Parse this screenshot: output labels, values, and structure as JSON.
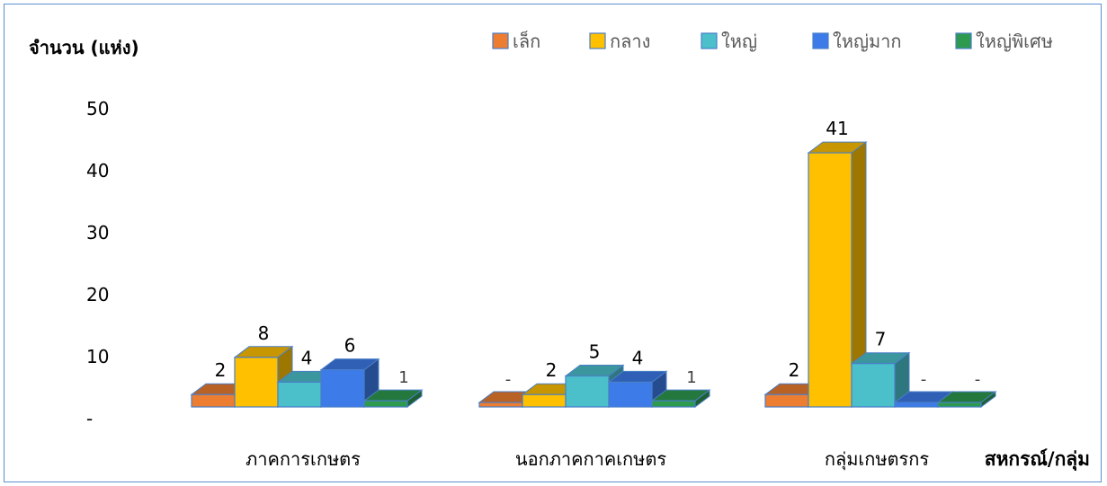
{
  "chart_data": {
    "type": "bar",
    "style": "3d-clustered-column",
    "ylabel": "จำนวน (แห่ง)",
    "xlabel": "สหกรณ์/กลุ่ม",
    "ylim": [
      0,
      50
    ],
    "yticks": [
      0,
      10,
      20,
      30,
      40,
      50
    ],
    "ytick_labels": [
      "-",
      "10",
      "20",
      "30",
      "40",
      "50"
    ],
    "categories": [
      "ภาคการเกษตร",
      "นอกภาคกาคเกษตร",
      "กลุ่มเกษตรกร"
    ],
    "legend_position": "top-right",
    "grid": false,
    "series": [
      {
        "name": "เล็ก",
        "color": "#ed7d31",
        "values": [
          2,
          0,
          2
        ],
        "labels": [
          "2",
          "-",
          "2"
        ]
      },
      {
        "name": "กลาง",
        "color": "#ffc000",
        "values": [
          8,
          2,
          41
        ],
        "labels": [
          "8",
          "2",
          "41"
        ]
      },
      {
        "name": "ใหญ่",
        "color": "#4bc0cb",
        "values": [
          4,
          5,
          7
        ],
        "labels": [
          "4",
          "5",
          "7"
        ]
      },
      {
        "name": "ใหญ่มาก",
        "color": "#3d7be8",
        "values": [
          6,
          4,
          0
        ],
        "labels": [
          "6",
          "4",
          "-"
        ]
      },
      {
        "name": "ใหญ่พิเศษ",
        "color": "#2e9a4f",
        "values": [
          1,
          1,
          0
        ],
        "labels": [
          "1",
          "1",
          "-"
        ]
      }
    ]
  }
}
